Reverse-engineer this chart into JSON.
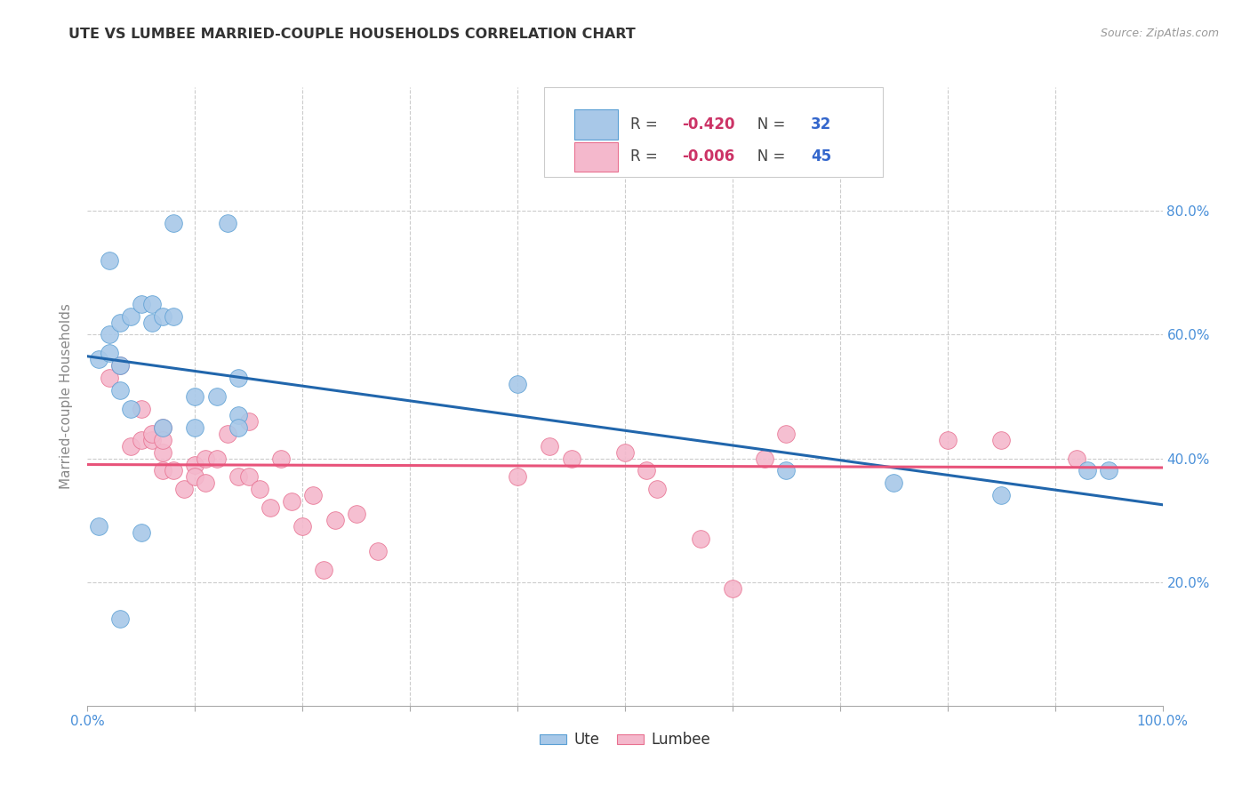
{
  "title": "UTE VS LUMBEE MARRIED-COUPLE HOUSEHOLDS CORRELATION CHART",
  "source": "Source: ZipAtlas.com",
  "ylabel": "Married-couple Households",
  "xlim": [
    0,
    1.0
  ],
  "ylim": [
    0,
    1.0
  ],
  "xticks": [
    0.0,
    0.1,
    0.2,
    0.3,
    0.4,
    0.5,
    0.6,
    0.7,
    0.8,
    0.9,
    1.0
  ],
  "xticklabels_right": [
    "0.0%",
    "",
    "",
    "",
    "",
    "",
    "",
    "",
    "",
    "",
    "100.0%"
  ],
  "yticks": [
    0.0,
    0.2,
    0.4,
    0.6,
    0.8,
    1.0
  ],
  "yticklabels_right": [
    "",
    "20.0%",
    "40.0%",
    "60.0%",
    "80.0%",
    ""
  ],
  "ute_color": "#a8c8e8",
  "lumbee_color": "#f4b8cc",
  "ute_edge_color": "#5a9fd4",
  "lumbee_edge_color": "#e87090",
  "ute_line_color": "#2166ac",
  "lumbee_line_color": "#e8537a",
  "ute_R": "-0.420",
  "ute_N": "32",
  "lumbee_R": "-0.006",
  "lumbee_N": "45",
  "legend_label_ute": "Ute",
  "legend_label_lumbee": "Lumbee",
  "grid_color": "#cccccc",
  "background_color": "#ffffff",
  "title_color": "#333333",
  "axis_label_color": "#888888",
  "tick_label_color": "#4a90d9",
  "r_value_color": "#cc3366",
  "n_value_color": "#3366cc",
  "ute_x": [
    0.01,
    0.01,
    0.02,
    0.02,
    0.02,
    0.03,
    0.03,
    0.04,
    0.04,
    0.05,
    0.06,
    0.06,
    0.07,
    0.08,
    0.08,
    0.1,
    0.12,
    0.13,
    0.14,
    0.14,
    0.05,
    0.03,
    0.03,
    0.07,
    0.1,
    0.14,
    0.4,
    0.65,
    0.75,
    0.85,
    0.93,
    0.95
  ],
  "ute_y": [
    0.29,
    0.56,
    0.57,
    0.6,
    0.72,
    0.51,
    0.62,
    0.48,
    0.63,
    0.65,
    0.62,
    0.65,
    0.63,
    0.78,
    0.63,
    0.5,
    0.5,
    0.78,
    0.53,
    0.47,
    0.28,
    0.14,
    0.55,
    0.45,
    0.45,
    0.45,
    0.52,
    0.38,
    0.36,
    0.34,
    0.38,
    0.38
  ],
  "lumbee_x": [
    0.02,
    0.03,
    0.04,
    0.05,
    0.05,
    0.06,
    0.06,
    0.07,
    0.07,
    0.07,
    0.07,
    0.08,
    0.09,
    0.1,
    0.1,
    0.11,
    0.11,
    0.12,
    0.13,
    0.14,
    0.15,
    0.15,
    0.16,
    0.17,
    0.18,
    0.19,
    0.2,
    0.21,
    0.22,
    0.23,
    0.25,
    0.27,
    0.4,
    0.43,
    0.45,
    0.5,
    0.52,
    0.53,
    0.57,
    0.6,
    0.63,
    0.65,
    0.8,
    0.85,
    0.92
  ],
  "lumbee_y": [
    0.53,
    0.55,
    0.42,
    0.43,
    0.48,
    0.43,
    0.44,
    0.45,
    0.41,
    0.43,
    0.38,
    0.38,
    0.35,
    0.39,
    0.37,
    0.4,
    0.36,
    0.4,
    0.44,
    0.37,
    0.46,
    0.37,
    0.35,
    0.32,
    0.4,
    0.33,
    0.29,
    0.34,
    0.22,
    0.3,
    0.31,
    0.25,
    0.37,
    0.42,
    0.4,
    0.41,
    0.38,
    0.35,
    0.27,
    0.19,
    0.4,
    0.44,
    0.43,
    0.43,
    0.4
  ],
  "ute_line_x0": 0.0,
  "ute_line_x1": 1.0,
  "ute_line_y0": 0.565,
  "ute_line_y1": 0.325,
  "lumbee_line_x0": 0.0,
  "lumbee_line_x1": 1.0,
  "lumbee_line_y0": 0.39,
  "lumbee_line_y1": 0.385
}
